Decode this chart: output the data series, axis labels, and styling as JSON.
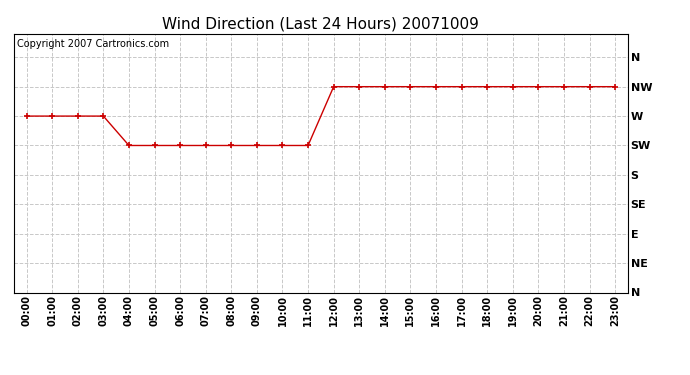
{
  "title": "Wind Direction (Last 24 Hours) 20071009",
  "copyright": "Copyright 2007 Cartronics.com",
  "x_labels": [
    "00:00",
    "01:00",
    "02:00",
    "03:00",
    "04:00",
    "05:00",
    "06:00",
    "07:00",
    "08:00",
    "09:00",
    "10:00",
    "11:00",
    "12:00",
    "13:00",
    "14:00",
    "15:00",
    "16:00",
    "17:00",
    "18:00",
    "19:00",
    "20:00",
    "21:00",
    "22:00",
    "23:00"
  ],
  "y_labels_top_to_bottom": [
    "N",
    "NW",
    "W",
    "SW",
    "S",
    "SE",
    "E",
    "NE",
    "N"
  ],
  "wind_data": [
    6,
    6,
    6,
    6,
    5,
    5,
    5,
    5,
    5,
    5,
    5,
    5,
    7,
    7,
    7,
    7,
    7,
    7,
    7,
    7,
    7,
    7,
    7,
    7
  ],
  "line_color": "#cc0000",
  "marker": "+",
  "marker_size": 4,
  "marker_color": "#cc0000",
  "bg_color": "#ffffff",
  "grid_color": "#c8c8c8",
  "title_fontsize": 11,
  "copyright_fontsize": 7,
  "tick_fontsize": 7,
  "y_tick_fontsize": 8
}
